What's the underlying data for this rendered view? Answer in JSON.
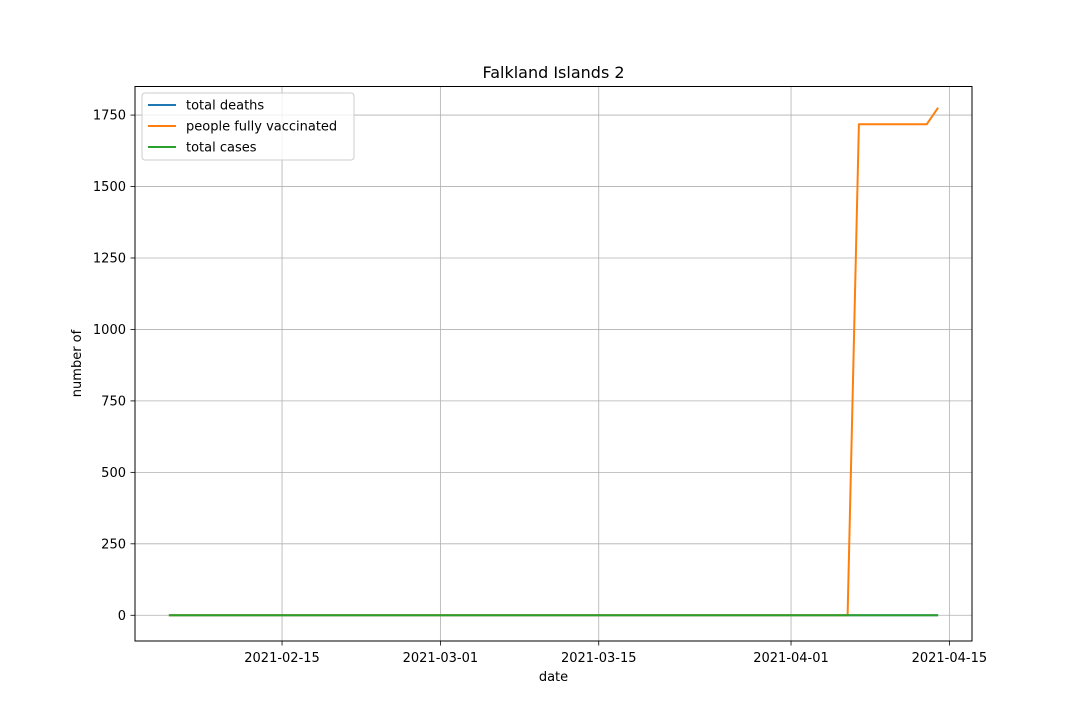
{
  "chart_data": {
    "type": "line",
    "title": "Falkland Islands 2",
    "xlabel": "date",
    "ylabel": "number of",
    "grid": true,
    "legend_position": "upper-left",
    "x_ticks": [
      "2021-02-15",
      "2021-03-01",
      "2021-03-15",
      "2021-04-01",
      "2021-04-15"
    ],
    "y_ticks": [
      0,
      250,
      500,
      750,
      1000,
      1250,
      1500,
      1750
    ],
    "xlim": [
      "2021-02-02",
      "2021-04-17"
    ],
    "ylim": [
      -90,
      1850
    ],
    "series": [
      {
        "name": "total deaths",
        "color": "#1f77b4",
        "points": [
          [
            "2021-02-05",
            0
          ],
          [
            "2021-04-14",
            0
          ]
        ]
      },
      {
        "name": "people fully vaccinated",
        "color": "#ff7f0e",
        "points": [
          [
            "2021-02-05",
            0
          ],
          [
            "2021-04-06",
            0
          ],
          [
            "2021-04-07",
            1718
          ],
          [
            "2021-04-13",
            1718
          ],
          [
            "2021-04-14",
            1776
          ]
        ]
      },
      {
        "name": "total cases",
        "color": "#2ca02c",
        "points": [
          [
            "2021-02-05",
            0
          ],
          [
            "2021-04-14",
            0
          ]
        ]
      }
    ]
  }
}
